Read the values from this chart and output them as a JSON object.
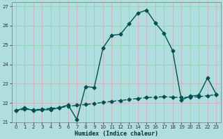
{
  "title": "",
  "xlabel": "Humidex (Indice chaleur)",
  "bg_color": "#b0dede",
  "grid_color": "#d4b0b0",
  "line_color": "#005050",
  "ylim": [
    21.0,
    27.0
  ],
  "xlim": [
    -0.5,
    23.5
  ],
  "yticks": [
    21,
    22,
    23,
    24,
    25,
    26,
    27
  ],
  "xticks": [
    0,
    1,
    2,
    3,
    4,
    5,
    6,
    7,
    8,
    9,
    10,
    11,
    12,
    13,
    14,
    15,
    16,
    17,
    18,
    19,
    20,
    21,
    22,
    23
  ],
  "hours": [
    0,
    1,
    2,
    3,
    4,
    5,
    6,
    7,
    8,
    9,
    10,
    11,
    12,
    13,
    14,
    15,
    16,
    17,
    18,
    19,
    20,
    21,
    22,
    23
  ],
  "humidex_main": [
    21.6,
    21.75,
    21.6,
    21.65,
    21.65,
    21.75,
    21.9,
    21.15,
    22.85,
    22.8,
    24.85,
    25.5,
    25.55,
    26.1,
    26.65,
    26.8,
    26.15,
    25.6,
    24.7,
    22.15,
    22.35,
    22.4,
    23.3,
    22.45
  ],
  "humidex_avg": [
    21.6,
    21.68,
    21.65,
    21.68,
    21.72,
    21.76,
    21.82,
    21.88,
    21.92,
    21.97,
    22.03,
    22.08,
    22.13,
    22.18,
    22.23,
    22.28,
    22.3,
    22.32,
    22.3,
    22.28,
    22.3,
    22.32,
    22.38,
    22.42
  ],
  "markersize": 2.5,
  "linewidth": 1.0
}
